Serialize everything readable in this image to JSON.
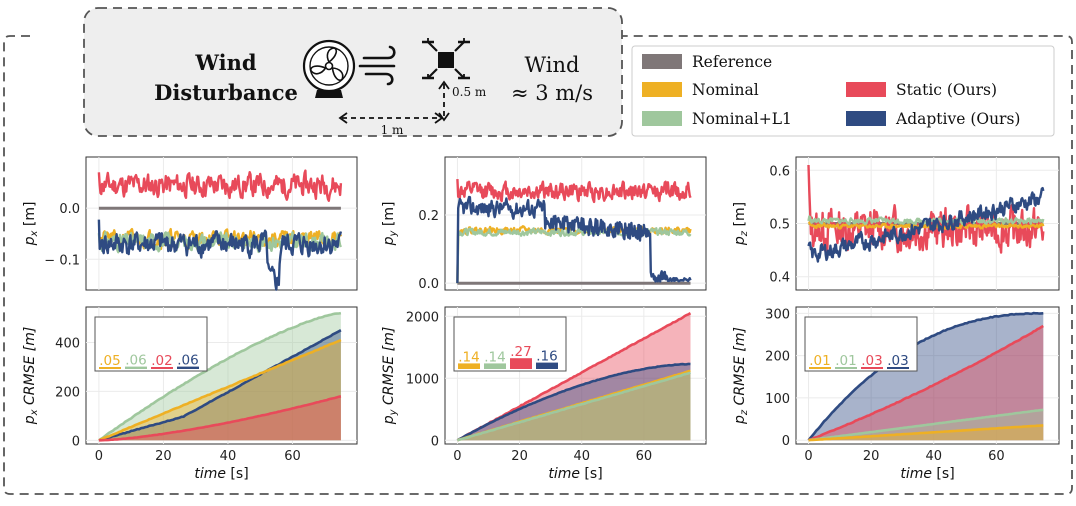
{
  "header": {
    "title_line1": "Wind",
    "title_line2": "Disturbance",
    "wind_line1": "Wind",
    "wind_line2": "≈ 3 m/s",
    "dist_vertical": "0.5 m",
    "dist_horizontal": "1 m"
  },
  "legend": {
    "items": [
      {
        "label": "Reference",
        "color": "#7f7778"
      },
      {
        "label": "Nominal",
        "color": "#eeb024"
      },
      {
        "label": "Nominal+L1",
        "color": "#9fc79d"
      },
      {
        "label": "Static (Ours)",
        "color": "#e84a5a"
      },
      {
        "label": "Adaptive (Ours)",
        "color": "#2f4b82"
      }
    ]
  },
  "colors": {
    "reference": "#7f7778",
    "nominal": "#eeb024",
    "l1": "#9fc79d",
    "static": "#e84a5a",
    "adaptive": "#2f4b82",
    "grid": "#ebebeb",
    "border": "#555555"
  },
  "chart_data": [
    {
      "type": "line",
      "id": "px",
      "ylabel": "p_x [m]",
      "ylabel_main": "p",
      "ylabel_sub": "x",
      "ylabel_unit": "[m]",
      "xlim": [
        -4,
        80
      ],
      "ylim": [
        -0.16,
        0.1
      ],
      "yticks": [
        0.0,
        -0.1
      ],
      "ytick_labels": [
        "0.0",
        "− 0.1"
      ],
      "series": [
        {
          "name": "Reference",
          "const": 0.0
        },
        {
          "name": "Static (Ours)",
          "mean": 0.045,
          "amp": 0.035,
          "seed": 11
        },
        {
          "name": "Nominal",
          "mean": -0.06,
          "amp": 0.025,
          "seed": 21
        },
        {
          "name": "Nominal+L1",
          "mean": -0.065,
          "amp": 0.025,
          "seed": 31
        },
        {
          "name": "Adaptive (Ours)",
          "mean": -0.07,
          "amp": 0.035,
          "seed": 41
        }
      ]
    },
    {
      "type": "line",
      "id": "py",
      "ylabel": "p_y [m]",
      "ylabel_main": "p",
      "ylabel_sub": "y",
      "ylabel_unit": "[m]",
      "xlim": [
        -4,
        80
      ],
      "ylim": [
        -0.02,
        0.37
      ],
      "yticks": [
        0.0,
        0.2
      ],
      "ytick_labels": [
        "0.0",
        "0.2"
      ],
      "series": [
        {
          "name": "Reference",
          "const": 0.0
        },
        {
          "name": "Static (Ours)",
          "mean": 0.27,
          "amp": 0.04,
          "seed": 12
        },
        {
          "name": "Nominal",
          "mean": 0.155,
          "amp": 0.015,
          "seed": 22
        },
        {
          "name": "Nominal+L1",
          "mean": 0.15,
          "amp": 0.015,
          "seed": 32
        },
        {
          "name": "Adaptive (Ours)",
          "mean": 0.22,
          "amp": 0.04,
          "seed": 42
        }
      ]
    },
    {
      "type": "line",
      "id": "pz",
      "ylabel": "p_z [m]",
      "ylabel_main": "p",
      "ylabel_sub": "z",
      "ylabel_unit": "[m]",
      "xlim": [
        -4,
        80
      ],
      "ylim": [
        0.375,
        0.625
      ],
      "yticks": [
        0.6,
        0.5,
        0.4
      ],
      "ytick_labels": [
        "0.6",
        "0.5",
        "0.4"
      ],
      "series": [
        {
          "name": "Reference",
          "const": 0.5
        },
        {
          "name": "Static (Ours)",
          "mean": 0.49,
          "amp": 0.06,
          "seed": 13
        },
        {
          "name": "Nominal",
          "mean": 0.495,
          "amp": 0.006,
          "seed": 23
        },
        {
          "name": "Nominal+L1",
          "mean": 0.505,
          "amp": 0.008,
          "seed": 33
        },
        {
          "name": "Adaptive (Ours)",
          "mean": 0.44,
          "amp": 0.025,
          "seed": 43
        }
      ]
    },
    {
      "type": "area",
      "id": "cx",
      "ylabel": "p_x CRMSE [m]",
      "ylabel_main": "p",
      "ylabel_sub": "x",
      "ylabel_unit": "CRMSE [m]",
      "xlabel": "time [s]",
      "xlim": [
        -4,
        80
      ],
      "ylim": [
        -15,
        545
      ],
      "xticks": [
        0,
        20,
        40,
        60
      ],
      "yticks": [
        0,
        200,
        400
      ],
      "series": [
        {
          "name": "Nominal+L1",
          "final": 520,
          "shape": "concave"
        },
        {
          "name": "Adaptive (Ours)",
          "final": 450,
          "shape": "adaptive_x"
        },
        {
          "name": "Nominal",
          "final": 410,
          "shape": "linear"
        },
        {
          "name": "Static (Ours)",
          "final": 180,
          "shape": "convex"
        }
      ],
      "inset_bars": [
        {
          "name": "Nominal",
          "label": ".05",
          "value": 0.05
        },
        {
          "name": "Nominal+L1",
          "label": ".06",
          "value": 0.06
        },
        {
          "name": "Static (Ours)",
          "label": ".02",
          "value": 0.02
        },
        {
          "name": "Adaptive (Ours)",
          "label": ".06",
          "value": 0.06
        }
      ]
    },
    {
      "type": "area",
      "id": "cy",
      "ylabel": "p_y CRMSE [m]",
      "ylabel_main": "p",
      "ylabel_sub": "y",
      "ylabel_unit": "CRMSE [m]",
      "xlabel": "time [s]",
      "xlim": [
        -4,
        80
      ],
      "ylim": [
        -60,
        2150
      ],
      "xticks": [
        0,
        20,
        40,
        60
      ],
      "yticks": [
        0,
        1000,
        2000
      ],
      "series": [
        {
          "name": "Static (Ours)",
          "final": 2050,
          "shape": "linear"
        },
        {
          "name": "Adaptive (Ours)",
          "final": 1230,
          "shape": "adaptive_y"
        },
        {
          "name": "Nominal",
          "final": 1120,
          "shape": "linear"
        },
        {
          "name": "Nominal+L1",
          "final": 1090,
          "shape": "linear"
        }
      ],
      "inset_bars": [
        {
          "name": "Nominal",
          "label": ".14",
          "value": 0.14
        },
        {
          "name": "Nominal+L1",
          "label": ".14",
          "value": 0.14
        },
        {
          "name": "Static (Ours)",
          "label": ".27",
          "value": 0.27
        },
        {
          "name": "Adaptive (Ours)",
          "label": ".16",
          "value": 0.16
        }
      ]
    },
    {
      "type": "area",
      "id": "cz",
      "ylabel": "p_z CRMSE [m]",
      "ylabel_main": "p",
      "ylabel_sub": "z",
      "ylabel_unit": "CRMSE [m]",
      "xlabel": "time [s]",
      "xlim": [
        -4,
        80
      ],
      "ylim": [
        -9,
        315
      ],
      "xticks": [
        0,
        20,
        40,
        60
      ],
      "yticks": [
        0,
        100,
        200,
        300
      ],
      "series": [
        {
          "name": "Adaptive (Ours)",
          "final": 300,
          "shape": "concave_strong"
        },
        {
          "name": "Static (Ours)",
          "final": 270,
          "shape": "linear_slight"
        },
        {
          "name": "Nominal+L1",
          "final": 72,
          "shape": "linear"
        },
        {
          "name": "Nominal",
          "final": 35,
          "shape": "linear"
        }
      ],
      "inset_bars": [
        {
          "name": "Nominal",
          "label": ".01",
          "value": 0.01
        },
        {
          "name": "Nominal+L1",
          "label": ".01",
          "value": 0.01
        },
        {
          "name": "Static (Ours)",
          "label": ".03",
          "value": 0.03
        },
        {
          "name": "Adaptive (Ours)",
          "label": ".03",
          "value": 0.03
        }
      ]
    }
  ]
}
